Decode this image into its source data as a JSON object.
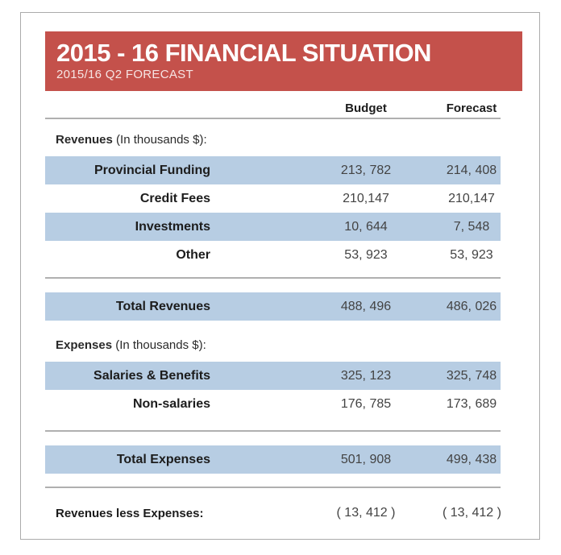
{
  "banner": {
    "title": "2015 - 16 FINANCIAL SITUATION",
    "subtitle": "2015/16 Q2 FORECAST",
    "bg_color": "#c4514b"
  },
  "colors": {
    "row_shade_blue": "#b7cde3",
    "rule_gray": "#b0b0b0",
    "card_border": "#ababab"
  },
  "table": {
    "columns": {
      "budget": "Budget",
      "forecast": "Forecast"
    },
    "revenues_heading": {
      "bold": "Revenues",
      "rest": " (In thousands $):"
    },
    "revenues_rows": [
      {
        "label": "Provincial Funding",
        "budget": "213, 782",
        "forecast": "214, 408"
      },
      {
        "label": "Credit Fees",
        "budget": "210,147",
        "forecast": "210,147"
      },
      {
        "label": "Investments",
        "budget": "10, 644",
        "forecast": "7, 548"
      },
      {
        "label": "Other",
        "budget": "53, 923",
        "forecast": "53, 923"
      }
    ],
    "total_revenues": {
      "label": "Total Revenues",
      "budget": "488, 496",
      "forecast": "486, 026"
    },
    "expenses_heading": {
      "bold": "Expenses",
      "rest": " (In thousands $):"
    },
    "expenses_rows": [
      {
        "label": "Salaries & Benefits",
        "budget": "325, 123",
        "forecast": "325, 748"
      },
      {
        "label": "Non-salaries",
        "budget": "176, 785",
        "forecast": "173, 689"
      }
    ],
    "total_expenses": {
      "label": "Total Expenses",
      "budget": "501, 908",
      "forecast": "499, 438"
    },
    "net": {
      "label": "Revenues less Expenses:",
      "budget": "( 13, 412 )",
      "forecast": "( 13, 412 )"
    }
  }
}
